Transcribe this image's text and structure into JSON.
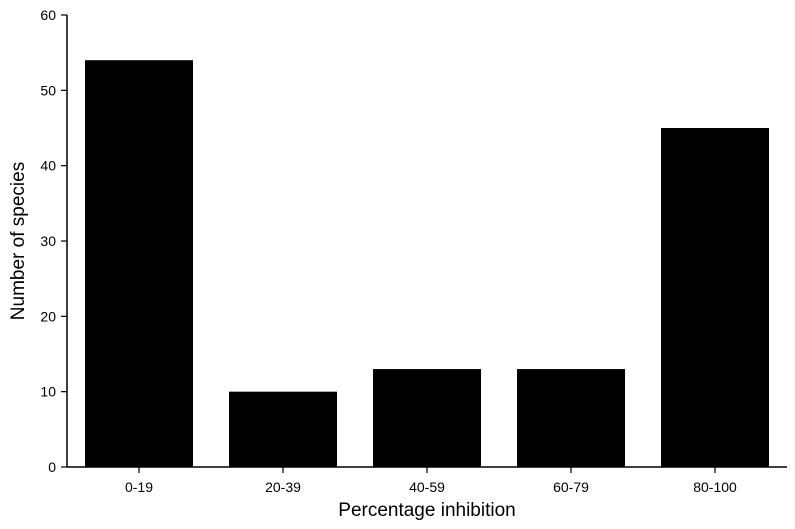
{
  "chart_data": {
    "type": "bar",
    "categories": [
      "0-19",
      "20-39",
      "40-59",
      "60-79",
      "80-100"
    ],
    "values": [
      54,
      10,
      13,
      13,
      45
    ],
    "xlabel": "Percentage inhibition",
    "ylabel": "Number of species",
    "ylim": [
      0,
      60
    ],
    "yticks": [
      0,
      10,
      20,
      30,
      40,
      50,
      60
    ],
    "grid": false,
    "legend": "none",
    "colors": {
      "bar": "#000000",
      "axis": "#000000",
      "background": "#ffffff"
    }
  }
}
